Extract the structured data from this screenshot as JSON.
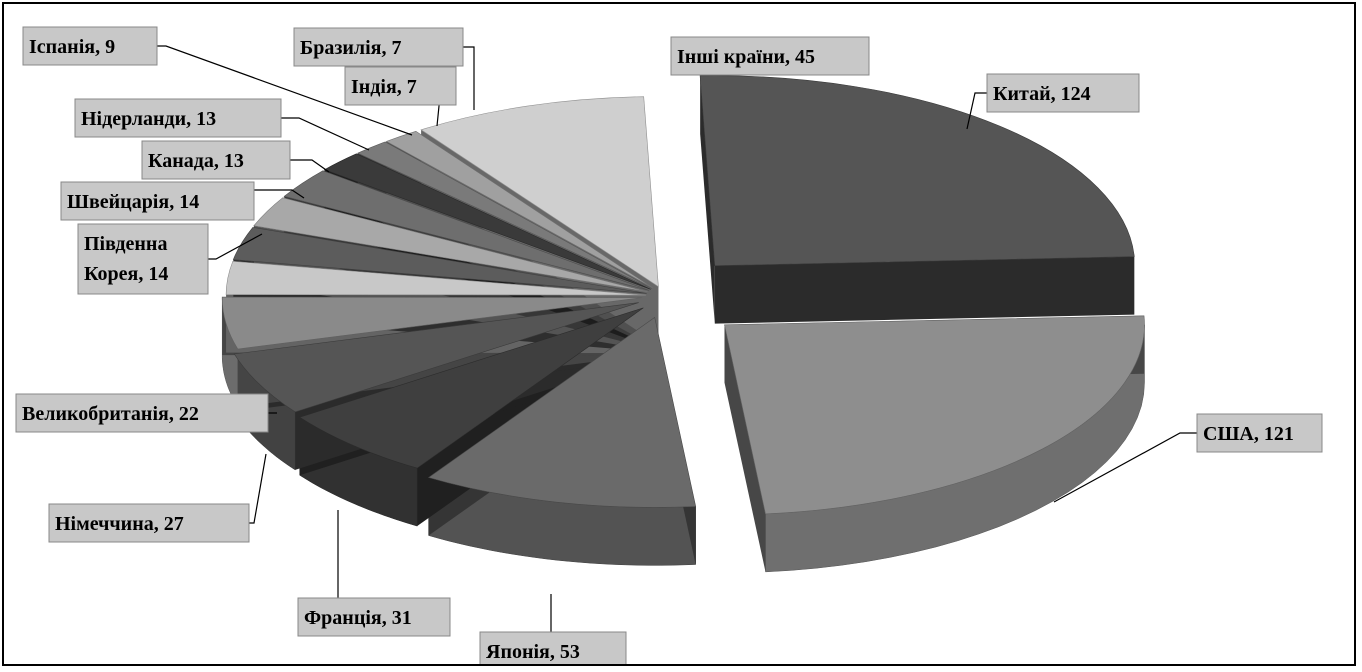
{
  "chart_data": {
    "type": "pie",
    "style": "3d-exploded",
    "legend": "none",
    "slices": [
      {
        "label": "Китай",
        "value": 124,
        "label_text": "Китай, 124",
        "color": "#555555"
      },
      {
        "label": "США",
        "value": 121,
        "label_text": "США, 121",
        "color": "#8e8e8e"
      },
      {
        "label": "Японія",
        "value": 53,
        "label_text": "Японія, 53",
        "color": "#6a6a6a"
      },
      {
        "label": "Франція",
        "value": 31,
        "label_text": "Франція, 31",
        "color": "#3f3f3f"
      },
      {
        "label": "Німеччина",
        "value": 27,
        "label_text": "Німеччина, 27",
        "color": "#555555"
      },
      {
        "label": "Великобританія",
        "value": 22,
        "label_text": "Великобританія, 22",
        "color": "#8a8a8a"
      },
      {
        "label": "Південна Корея",
        "value": 14,
        "label_text": [
          "Південна",
          "Корея, 14"
        ],
        "color": "#c8c8c8"
      },
      {
        "label": "Швейцарія",
        "value": 14,
        "label_text": "Швейцарія, 14",
        "color": "#5c5c5c"
      },
      {
        "label": "Канада",
        "value": 13,
        "label_text": "Канада, 13",
        "color": "#a8a8a8"
      },
      {
        "label": "Нідерланди",
        "value": 13,
        "label_text": "Нідерланди, 13",
        "color": "#6e6e6e"
      },
      {
        "label": "Іспанія",
        "value": 9,
        "label_text": "Іспанія, 9",
        "color": "#3a3a3a"
      },
      {
        "label": "Індія",
        "value": 7,
        "label_text": "Індія, 7",
        "color": "#7a7a7a"
      },
      {
        "label": "Бразилія",
        "value": 7,
        "label_text": "Бразилія, 7",
        "color": "#a0a0a0"
      },
      {
        "label": "Інші країни",
        "value": 45,
        "label_text": "Інші країни, 45",
        "color": "#cfcfcf"
      }
    ]
  }
}
